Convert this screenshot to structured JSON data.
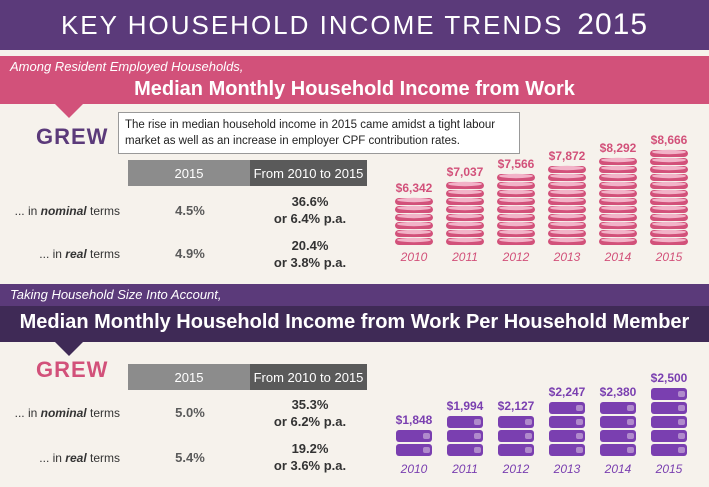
{
  "title": {
    "text": "KEY HOUSEHOLD INCOME TRENDS",
    "year": "2015"
  },
  "colors": {
    "purple": "#5b3a7a",
    "pink": "#d2517a",
    "dark_purple": "#3f2a56",
    "violet": "#7a3fb0"
  },
  "section1": {
    "subtitle": "Among Resident Employed Households,",
    "heading": "Median Monthly Household Income from Work",
    "grew": "GREW",
    "note": "The rise in median household income in 2015 came amidst a tight labour market as well as an increase in employer CPF contribution rates.",
    "table": {
      "headers": [
        "2015",
        "From 2010 to 2015"
      ],
      "rows": [
        {
          "prefix": "... in ",
          "term": "nominal",
          "suffix": " terms",
          "v2015": "4.5%",
          "change_line1": "36.6%",
          "change_line2": "or 6.4% p.a."
        },
        {
          "prefix": "... in ",
          "term": "real",
          "suffix": " terms",
          "v2015": "4.9%",
          "change_line1": "20.4%",
          "change_line2": "or 3.8% p.a."
        }
      ]
    }
  },
  "section2": {
    "subtitle": "Taking Household Size Into Account,",
    "heading": "Median Monthly Household Income from Work Per Household Member",
    "grew": "GREW",
    "table": {
      "headers": [
        "2015",
        "From 2010 to 2015"
      ],
      "rows": [
        {
          "prefix": "... in ",
          "term": "nominal",
          "suffix": " terms",
          "v2015": "5.0%",
          "change_line1": "35.3%",
          "change_line2": "or 6.2% p.a."
        },
        {
          "prefix": "... in ",
          "term": "real",
          "suffix": " terms",
          "v2015": "5.4%",
          "change_line1": "19.2%",
          "change_line2": "or 3.6% p.a."
        }
      ]
    }
  },
  "chart_data": [
    {
      "type": "bar",
      "title": "Median Monthly Household Income from Work",
      "categories": [
        "2010",
        "2011",
        "2012",
        "2013",
        "2014",
        "2015"
      ],
      "values": [
        6342,
        7037,
        7566,
        7872,
        8292,
        8666
      ],
      "labels": [
        "$6,342",
        "$7,037",
        "$7,566",
        "$7,872",
        "$8,292",
        "$8,666"
      ],
      "glyph": "coin-stack",
      "color": "#d2517a"
    },
    {
      "type": "bar",
      "title": "Median Monthly Household Income from Work Per Household Member",
      "categories": [
        "2010",
        "2011",
        "2012",
        "2013",
        "2014",
        "2015"
      ],
      "values": [
        1848,
        1994,
        2127,
        2247,
        2380,
        2500
      ],
      "labels": [
        "$1,848",
        "$1,994",
        "$2,127",
        "$2,247",
        "$2,380",
        "$2,500"
      ],
      "glyph": "wallet-stack",
      "color": "#7a3fb0"
    }
  ]
}
